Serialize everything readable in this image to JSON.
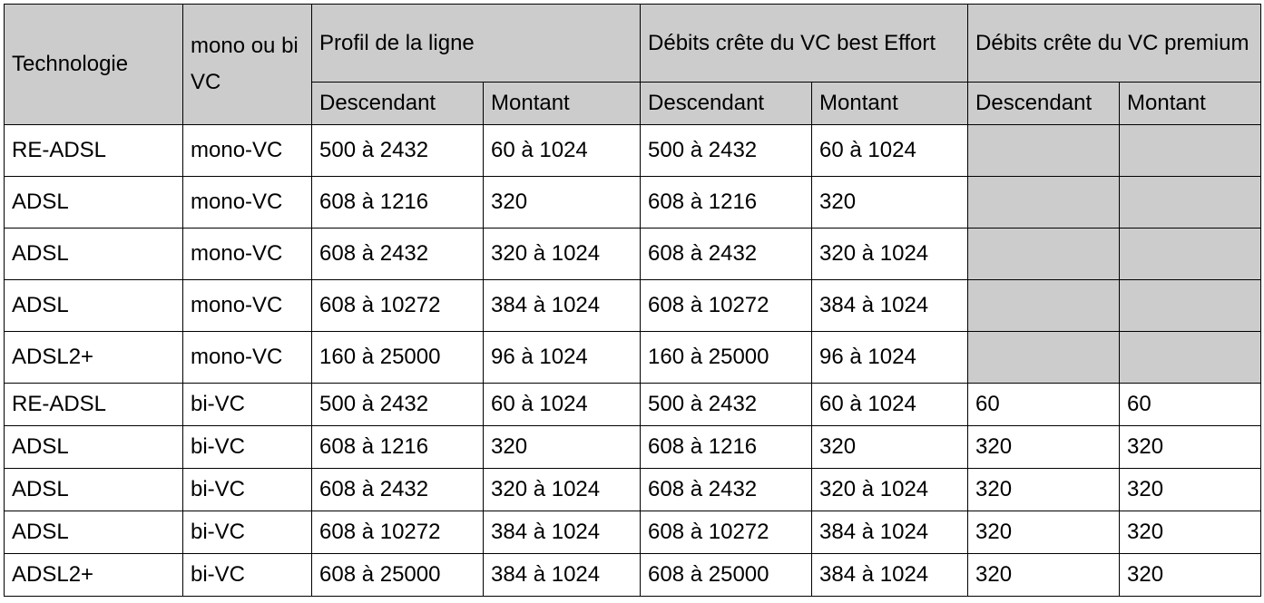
{
  "header": {
    "technologie": "Technologie",
    "mono_bi": "mono ou bi VC",
    "profil": "Profil de la ligne",
    "best_effort": "Débits crête du VC best Effort",
    "premium": "Débits crête du VC premium",
    "descendant": "Descendant",
    "montant": "Montant"
  },
  "rows": [
    {
      "tech": "RE-ADSL",
      "vc": "mono-VC",
      "pd": "500 à 2432",
      "pm": "60 à 1024",
      "bd": "500 à 2432",
      "bm": "60 à 1024",
      "prd": "",
      "prm": ""
    },
    {
      "tech": "ADSL",
      "vc": "mono-VC",
      "pd": "608 à 1216",
      "pm": "320",
      "bd": "608 à 1216",
      "bm": "320",
      "prd": "",
      "prm": ""
    },
    {
      "tech": "ADSL",
      "vc": "mono-VC",
      "pd": "608 à 2432",
      "pm": "320 à 1024",
      "bd": "608 à 2432",
      "bm": "320 à 1024",
      "prd": "",
      "prm": ""
    },
    {
      "tech": "ADSL",
      "vc": "mono-VC",
      "pd": "608 à 10272",
      "pm": "384 à 1024",
      "bd": "608 à 10272",
      "bm": "384 à 1024",
      "prd": "",
      "prm": ""
    },
    {
      "tech": "ADSL2+",
      "vc": "mono-VC",
      "pd": "160 à 25000",
      "pm": "96 à 1024",
      "bd": "160 à 25000",
      "bm": "96 à 1024",
      "prd": "",
      "prm": ""
    },
    {
      "tech": "RE-ADSL",
      "vc": "bi-VC",
      "pd": "500 à 2432",
      "pm": "60 à 1024",
      "bd": "500 à 2432",
      "bm": "60 à 1024",
      "prd": "60",
      "prm": "60"
    },
    {
      "tech": "ADSL",
      "vc": "bi-VC",
      "pd": "608 à 1216",
      "pm": "320",
      "bd": "608 à 1216",
      "bm": "320",
      "prd": "320",
      "prm": "320"
    },
    {
      "tech": "ADSL",
      "vc": "bi-VC",
      "pd": "608 à 2432",
      "pm": "320 à 1024",
      "bd": "608 à 2432",
      "bm": "320 à 1024",
      "prd": "320",
      "prm": "320"
    },
    {
      "tech": "ADSL",
      "vc": "bi-VC",
      "pd": "608 à 10272",
      "pm": "384 à 1024",
      "bd": "608 à 10272",
      "bm": "384 à 1024",
      "prd": "320",
      "prm": "320"
    },
    {
      "tech": "ADSL2+",
      "vc": "bi-VC",
      "pd": "608 à 25000",
      "pm": "384 à 1024",
      "bd": "608 à 25000",
      "bm": "384 à 1024",
      "prd": "320",
      "prm": "320"
    }
  ],
  "colors": {
    "header_bg": "#cccccc",
    "grid": "#000000",
    "cell_bg": "#ffffff"
  }
}
